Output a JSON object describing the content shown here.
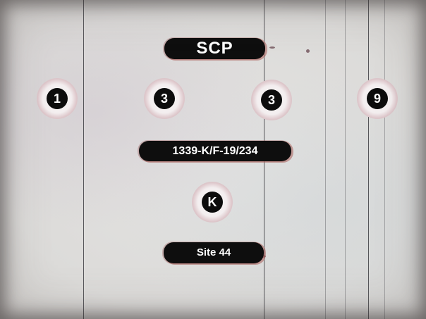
{
  "title_label": "SCP",
  "digits": [
    "1",
    "3",
    "3",
    "9"
  ],
  "code_label": "1339-K/F-19/234",
  "letter": "K",
  "site_label": "Site 44"
}
